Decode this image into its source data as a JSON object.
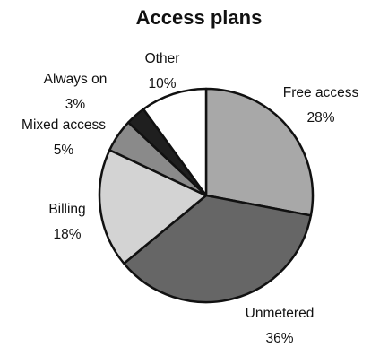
{
  "chart_data": {
    "type": "pie",
    "title": "Access plans",
    "slices": [
      {
        "label": "Free access",
        "value": 28,
        "value_label": "28%",
        "color": "#a8a8a8"
      },
      {
        "label": "Unmetered",
        "value": 36,
        "value_label": "36%",
        "color": "#666666"
      },
      {
        "label": "Billing",
        "value": 18,
        "value_label": "18%",
        "color": "#d3d3d3"
      },
      {
        "label": "Mixed access",
        "value": 5,
        "value_label": "5%",
        "color": "#8a8a8a"
      },
      {
        "label": "Always on",
        "value": 3,
        "value_label": "3%",
        "color": "#1f1f1f"
      },
      {
        "label": "Other",
        "value": 10,
        "value_label": "10%",
        "color": "#ffffff"
      }
    ],
    "start_angle_deg": 0,
    "direction": "clockwise",
    "edge_color": "#111111"
  }
}
